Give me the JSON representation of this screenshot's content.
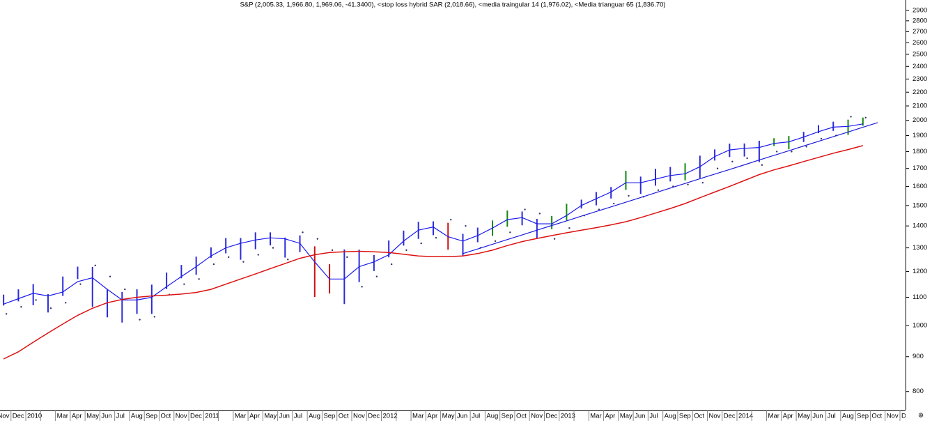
{
  "chart_data": {
    "type": "ohlc",
    "title": "S&P (2,005.33, 1,966.80, 1,969.06, -41.3400), <stop loss hybrid SAR (2,018.66), <media traingular 14 (1,976.02), <Media trianguar 65 (1,836.70)",
    "categories": [
      "Nov",
      "Dec",
      "2010",
      null,
      "Mar",
      "Apr",
      "May",
      "Jun",
      "Jul",
      "Aug",
      "Sep",
      "Oct",
      "Nov",
      "Dec",
      "2011",
      null,
      "Mar",
      "Apr",
      "May",
      "Jun",
      "Jul",
      "Aug",
      "Sep",
      "Oct",
      "Nov",
      "Dec",
      "2012",
      null,
      "Mar",
      "Apr",
      "May",
      "Jun",
      "Jul",
      "Aug",
      "Sep",
      "Oct",
      "Nov",
      "Dec",
      "2013",
      null,
      "Mar",
      "Apr",
      "May",
      "Jun",
      "Jul",
      "Aug",
      "Sep",
      "Oct",
      "Nov",
      "Dec",
      "2014",
      null,
      "Mar",
      "Apr",
      "May",
      "Jun",
      "Jul",
      "Aug",
      "Sep",
      "Oct",
      "Nov",
      "Dec"
    ],
    "bars": {
      "high": [
        1110,
        1130,
        1150,
        1112,
        1180,
        1220,
        1219,
        1131,
        1120,
        1130,
        1148,
        1196,
        1227,
        1262,
        1302,
        1344,
        1344,
        1370,
        1370,
        1346,
        1356,
        1307,
        1230,
        1293,
        1292,
        1269,
        1333,
        1378,
        1420,
        1422,
        1415,
        1363,
        1392,
        1426,
        1475,
        1470,
        1434,
        1448,
        1509,
        1530,
        1570,
        1597,
        1687,
        1654,
        1698,
        1709,
        1730,
        1775,
        1813,
        1849,
        1850,
        1867,
        1883,
        1897,
        1924,
        1968,
        1991,
        2005,
        2019,
        null,
        null,
        null
      ],
      "low": [
        1070,
        1085,
        1071,
        1045,
        1105,
        1170,
        1065,
        1028,
        1010,
        1040,
        1040,
        1131,
        1173,
        1187,
        1257,
        1276,
        1249,
        1294,
        1311,
        1258,
        1282,
        1101,
        1114,
        1075,
        1158,
        1202,
        1259,
        1310,
        1340,
        1357,
        1292,
        1267,
        1325,
        1354,
        1396,
        1403,
        1343,
        1385,
        1426,
        1485,
        1501,
        1536,
        1581,
        1560,
        1604,
        1627,
        1633,
        1646,
        1746,
        1767,
        1770,
        1737,
        1834,
        1814,
        1859,
        1915,
        1930,
        1904,
        1964,
        null,
        null,
        null
      ],
      "colors": [
        "#2b2bd9",
        "#2b2bd9",
        "#2b2bd9",
        "#2b2bd9",
        "#2b2bd9",
        "#2b2bd9",
        "#2b2bd9",
        "#2b2bd9",
        "#2b2bd9",
        "#2b2bd9",
        "#2b2bd9",
        "#2b2bd9",
        "#2b2bd9",
        "#2b2bd9",
        "#2b2bd9",
        "#2b2bd9",
        "#2b2bd9",
        "#2b2bd9",
        "#2b2bd9",
        "#2b2bd9",
        "#2b2bd9",
        "#cc1111",
        "#cc1111",
        "#2b2bd9",
        "#2b2bd9",
        "#2b2bd9",
        "#2b2bd9",
        "#2b2bd9",
        "#2b2bd9",
        "#2b2bd9",
        "#cc1111",
        "#2b2bd9",
        "#2b2bd9",
        "#118811",
        "#118811",
        "#2b2bd9",
        "#2b2bd9",
        "#118811",
        "#118811",
        "#2b2bd9",
        "#2b2bd9",
        "#2b2bd9",
        "#118811",
        "#2b2bd9",
        "#2b2bd9",
        "#2b2bd9",
        "#118811",
        "#2b2bd9",
        "#2b2bd9",
        "#2b2bd9",
        "#2b2bd9",
        "#2b2bd9",
        "#118811",
        "#118811",
        "#2b2bd9",
        "#2b2bd9",
        "#2b2bd9",
        "#118811",
        "#118811",
        null,
        null,
        null
      ]
    },
    "sar": {
      "color": "#333366",
      "values": [
        1040,
        1065,
        1090,
        1060,
        1080,
        1150,
        1225,
        1180,
        1130,
        1020,
        1030,
        1110,
        1150,
        1170,
        1230,
        1260,
        1240,
        1270,
        1300,
        1250,
        1370,
        1340,
        1290,
        1260,
        1140,
        1180,
        1230,
        1290,
        1320,
        1345,
        1430,
        1400,
        1300,
        1330,
        1370,
        1480,
        1460,
        1340,
        1390,
        1450,
        1480,
        1510,
        1550,
        1545,
        1580,
        1600,
        1610,
        1620,
        1700,
        1740,
        1760,
        1720,
        1800,
        1800,
        1830,
        1880,
        1900,
        2025,
        2018.66,
        null,
        null,
        null
      ]
    },
    "series": [
      {
        "color": "#1a1aee",
        "values": [
          1075,
          1095,
          1115,
          1105,
          1120,
          1160,
          1175,
          1130,
          1090,
          1090,
          1100,
          1140,
          1180,
          1220,
          1265,
          1300,
          1320,
          1335,
          1345,
          1340,
          1320,
          1240,
          1170,
          1170,
          1220,
          1240,
          1270,
          1330,
          1380,
          1395,
          1350,
          1330,
          1355,
          1390,
          1430,
          1440,
          1410,
          1410,
          1450,
          1500,
          1535,
          1570,
          1620,
          1620,
          1640,
          1660,
          1670,
          1710,
          1770,
          1810,
          1820,
          1825,
          1850,
          1860,
          1890,
          1925,
          1955,
          1960,
          1976.02,
          null,
          null,
          null
        ]
      },
      {
        "color": "#dd1111",
        "values": [
          893,
          915,
          945,
          975,
          1005,
          1035,
          1060,
          1080,
          1092,
          1100,
          1105,
          1108,
          1112,
          1118,
          1130,
          1150,
          1170,
          1190,
          1212,
          1233,
          1255,
          1270,
          1280,
          1283,
          1285,
          1283,
          1280,
          1272,
          1265,
          1262,
          1262,
          1265,
          1275,
          1290,
          1310,
          1328,
          1342,
          1355,
          1368,
          1380,
          1392,
          1405,
          1420,
          1440,
          1462,
          1485,
          1510,
          1540,
          1570,
          1600,
          1632,
          1665,
          1692,
          1715,
          1740,
          1765,
          1790,
          1812,
          1836.7,
          null,
          null,
          null
        ]
      },
      {
        "color": "#1a1add",
        "values": [
          null,
          null,
          null,
          null,
          null,
          null,
          null,
          null,
          null,
          null,
          null,
          null,
          null,
          null,
          null,
          null,
          null,
          null,
          null,
          null,
          null,
          null,
          null,
          null,
          null,
          null,
          null,
          null,
          null,
          null,
          null,
          1275,
          1295,
          1316,
          1337,
          1358,
          1380,
          1402,
          1424,
          1447,
          1470,
          1493,
          1517,
          1541,
          1566,
          1591,
          1616,
          1642,
          1668,
          1694,
          1721,
          1749,
          1777,
          1805,
          1834,
          1863,
          1893,
          1923,
          1954,
          1985,
          null,
          null
        ]
      }
    ],
    "log_scale": true,
    "ylim": [
      752,
      3004
    ],
    "yticks": [
      800,
      900,
      1000,
      1100,
      1200,
      1300,
      1400,
      1500,
      1600,
      1700,
      1800,
      1900,
      2000,
      2100,
      2200,
      2300,
      2400,
      2500,
      2600,
      2700,
      2800,
      2900
    ]
  }
}
